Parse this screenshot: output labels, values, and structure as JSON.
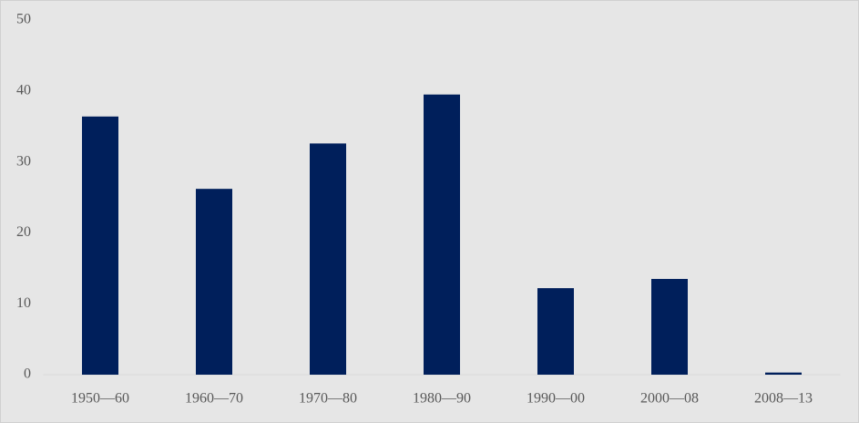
{
  "chart_data": {
    "type": "bar",
    "categories": [
      "1950—60",
      "1960—70",
      "1970—80",
      "1980—90",
      "1990—00",
      "2000—08",
      "2008—13"
    ],
    "values": [
      36.4,
      26.2,
      32.6,
      39.5,
      12.2,
      13.5,
      0.3
    ],
    "color": "#001f5b",
    "ylim": [
      0,
      50
    ],
    "yticks": [
      0,
      10,
      20,
      30,
      40,
      50
    ],
    "grid": false
  }
}
